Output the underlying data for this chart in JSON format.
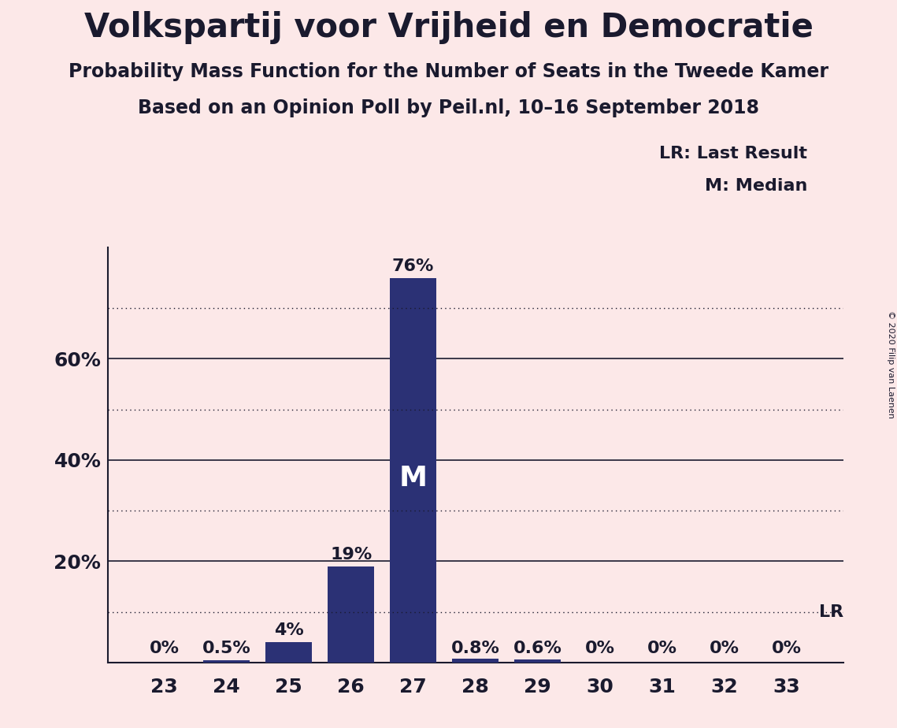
{
  "title": "Volkspartij voor Vrijheid en Democratie",
  "subtitle1": "Probability Mass Function for the Number of Seats in the Tweede Kamer",
  "subtitle2": "Based on an Opinion Poll by Peil.nl, 10–16 September 2018",
  "copyright": "© 2020 Filip van Laenen",
  "categories": [
    23,
    24,
    25,
    26,
    27,
    28,
    29,
    30,
    31,
    32,
    33
  ],
  "values": [
    0.0,
    0.5,
    4.0,
    19.0,
    76.0,
    0.8,
    0.6,
    0.0,
    0.0,
    0.0,
    0.0
  ],
  "bar_labels": [
    "0%",
    "0.5%",
    "4%",
    "19%",
    "76%",
    "0.8%",
    "0.6%",
    "0%",
    "0%",
    "0%",
    "0%"
  ],
  "bar_color": "#2b3175",
  "background_color": "#fce8e8",
  "ytick_positions": [
    20,
    40,
    60
  ],
  "ytick_labels": [
    "20%",
    "40%",
    "60%"
  ],
  "ylim": [
    0,
    82
  ],
  "solid_lines": [
    20,
    40,
    60
  ],
  "dotted_lines": [
    10,
    30,
    50,
    70
  ],
  "median_seat": 27,
  "lr_value": 10,
  "legend_lr": "LR: Last Result",
  "legend_m": "M: Median",
  "title_fontsize": 30,
  "subtitle_fontsize": 17,
  "label_fontsize": 16,
  "tick_fontsize": 18
}
